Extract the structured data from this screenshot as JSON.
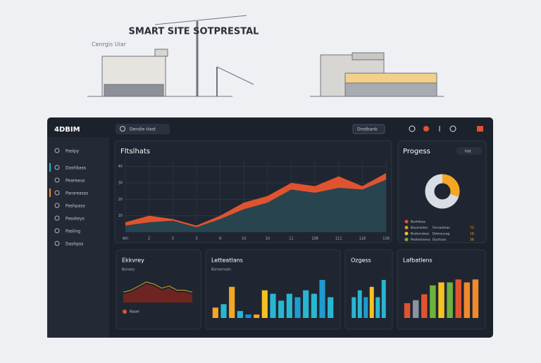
{
  "header": {
    "title": "SMART SITE SOTPRESTAL",
    "subtitle": "Cenrgis Uiar"
  },
  "app": {
    "logo": "4DBIM",
    "search": "Dendie Hast",
    "dropdown": "Dnstbank"
  },
  "sidebar": [
    "Paslpy",
    "Dashbass",
    "Peareaus",
    "Paroreasss",
    "Pashpass",
    "Passkeys",
    "Pasling",
    "Dashpss"
  ],
  "main_chart": {
    "title": "Fltslhats",
    "x": [
      "4th",
      "2",
      "3",
      "3",
      "8",
      "10",
      "10",
      "11",
      "108",
      "111",
      "118",
      "138"
    ],
    "ylim": [
      0,
      45
    ],
    "yticks": [
      10,
      20,
      30,
      40
    ],
    "series": [
      {
        "color": "#e0532f",
        "values": [
          6,
          10,
          8,
          4,
          10,
          18,
          22,
          30,
          28,
          34,
          28,
          36
        ]
      },
      {
        "color": "#27444f",
        "values": [
          4,
          6,
          7,
          3,
          8,
          14,
          18,
          26,
          24,
          27,
          26,
          32
        ]
      }
    ]
  },
  "progress": {
    "title": "Progess",
    "filter": "Hat",
    "donut": {
      "values": [
        30,
        70
      ],
      "colors": [
        "#f5a623",
        "#d9dde4"
      ]
    },
    "legend": [
      {
        "label": "Burkdoes",
        "detail": "",
        "value": "",
        "color": "#e0532f"
      },
      {
        "label": "Bauinseles",
        "detail": "Farnaeteas",
        "value": "72",
        "color": "#f08a2a"
      },
      {
        "label": "Brstionsbas",
        "detail": "Dolnouvag",
        "value": "18",
        "color": "#f5c123"
      },
      {
        "label": "Peaheloness",
        "detail": "Dunhass",
        "value": "38",
        "color": "#6cb33f"
      }
    ]
  },
  "panels": [
    {
      "title": "Ekkvrey",
      "subtitle": "Bsnoey",
      "legend": "Raser",
      "ylim": [
        0,
        12
      ],
      "series": [
        {
          "color": "#d4a020",
          "values": [
            5,
            6,
            8,
            10,
            9,
            7,
            8,
            6,
            6,
            5
          ]
        },
        {
          "color": "#6e2522",
          "values": [
            4,
            5,
            7,
            9,
            8,
            6,
            7,
            5,
            5,
            4
          ]
        }
      ]
    },
    {
      "title": "Letteatlans",
      "subtitle": "Bsmornsen",
      "ylim": [
        0,
        12
      ],
      "values": [
        3,
        4,
        9,
        2,
        1,
        1,
        8,
        7,
        5,
        7,
        6,
        8,
        7,
        11,
        6
      ],
      "colors": [
        "#f5a623",
        "#29b6d1",
        "#f5a623",
        "#29b6d1",
        "#1e88e5",
        "#f5a623",
        "#f5c123",
        "#29b6d1",
        "#29b6d1",
        "#29b6d1",
        "#1e9bd1",
        "#29b6d1",
        "#29b6d1",
        "#1e9bd1",
        "#29b6d1"
      ]
    },
    {
      "title": "Ozgess",
      "subtitle": "",
      "ylim": [
        0,
        12
      ],
      "values": [
        6,
        8,
        6,
        9,
        6,
        11
      ],
      "colors": [
        "#29b6d1",
        "#29b6d1",
        "#1e9bd1",
        "#f5c123",
        "#29b6d1",
        "#29b6d1"
      ]
    },
    {
      "title": "Lafbatlens",
      "subtitle": "",
      "ylim": [
        0,
        14
      ],
      "values": [
        5,
        6,
        8,
        11,
        12,
        12,
        13,
        12,
        13
      ],
      "colors": [
        "#e0532f",
        "#8a93a0",
        "#e0532f",
        "#6cb33f",
        "#f5c123",
        "#6cb33f",
        "#e0532f",
        "#f08a2a",
        "#f08a2a"
      ]
    }
  ]
}
